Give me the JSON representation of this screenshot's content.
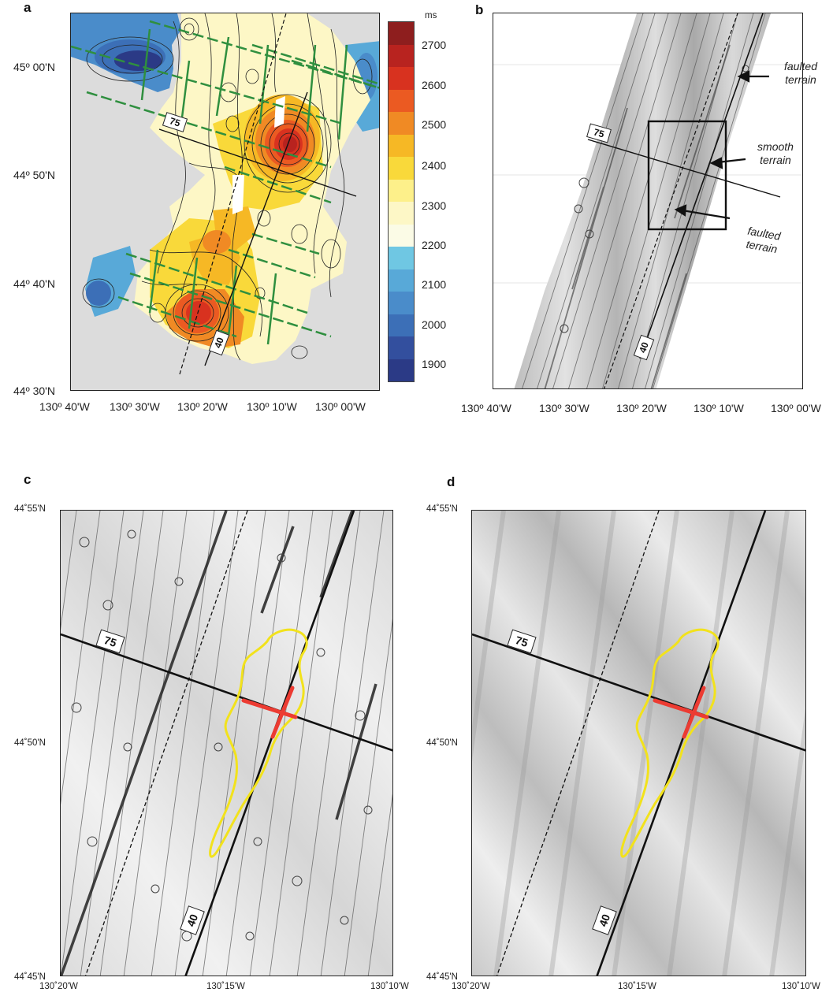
{
  "panels": {
    "a": {
      "letter": "a",
      "lat_labels": [
        "45º 00'N",
        "44º 50'N",
        "44º 40'N",
        "44º 30'N"
      ],
      "lon_labels": [
        "130º 40'W",
        "130º 30'W",
        "130º 20'W",
        "130º 10'W",
        "130º 00'W"
      ],
      "line_labels": [
        "75",
        "40"
      ],
      "colorbar": {
        "unit": "ms",
        "ticks": [
          "2700",
          "2600",
          "2500",
          "2400",
          "2300",
          "2200",
          "2100",
          "2000",
          "1900"
        ],
        "colors": [
          "#8e1e1e",
          "#b8231f",
          "#d8321f",
          "#eb5a22",
          "#f08a24",
          "#f6b825",
          "#f9d93a",
          "#fdf08a",
          "#fdf7c6",
          "#fbfbe6",
          "#6fc7e3",
          "#58a9d8",
          "#4a8cca",
          "#3c6fb7",
          "#334f9e",
          "#2b3a86"
        ]
      }
    },
    "b": {
      "letter": "b",
      "lon_labels": [
        "130º 40'W",
        "130º 30'W",
        "130º 20'W",
        "130º 10'W",
        "130º 00'W"
      ],
      "line_labels": [
        "75",
        "40"
      ],
      "annotations": [
        {
          "line1": "faulted",
          "line2": "terrain"
        },
        {
          "line1": "smooth",
          "line2": "terrain"
        },
        {
          "line1": "faulted",
          "line2": "terrain"
        }
      ]
    },
    "c": {
      "letter": "c",
      "lat_labels": [
        "44˚55'N",
        "44˚50'N",
        "44˚45'N"
      ],
      "lon_labels": [
        "130˚20'W",
        "130˚15'W",
        "130˚10'W"
      ],
      "line_labels": [
        "75",
        "40"
      ]
    },
    "d": {
      "letter": "d",
      "lat_labels": [
        "44˚55'N",
        "44˚50'N",
        "44˚45'N"
      ],
      "lon_labels": [
        "130˚20'W",
        "130˚15'W",
        "130˚10'W"
      ],
      "line_labels": [
        "75",
        "40"
      ]
    }
  },
  "colors": {
    "outline_yellow": "#f2e21c",
    "cross_red": "#ec3b32",
    "line_green": "#2f8f3f",
    "land_grey": "#dcdcdc"
  }
}
